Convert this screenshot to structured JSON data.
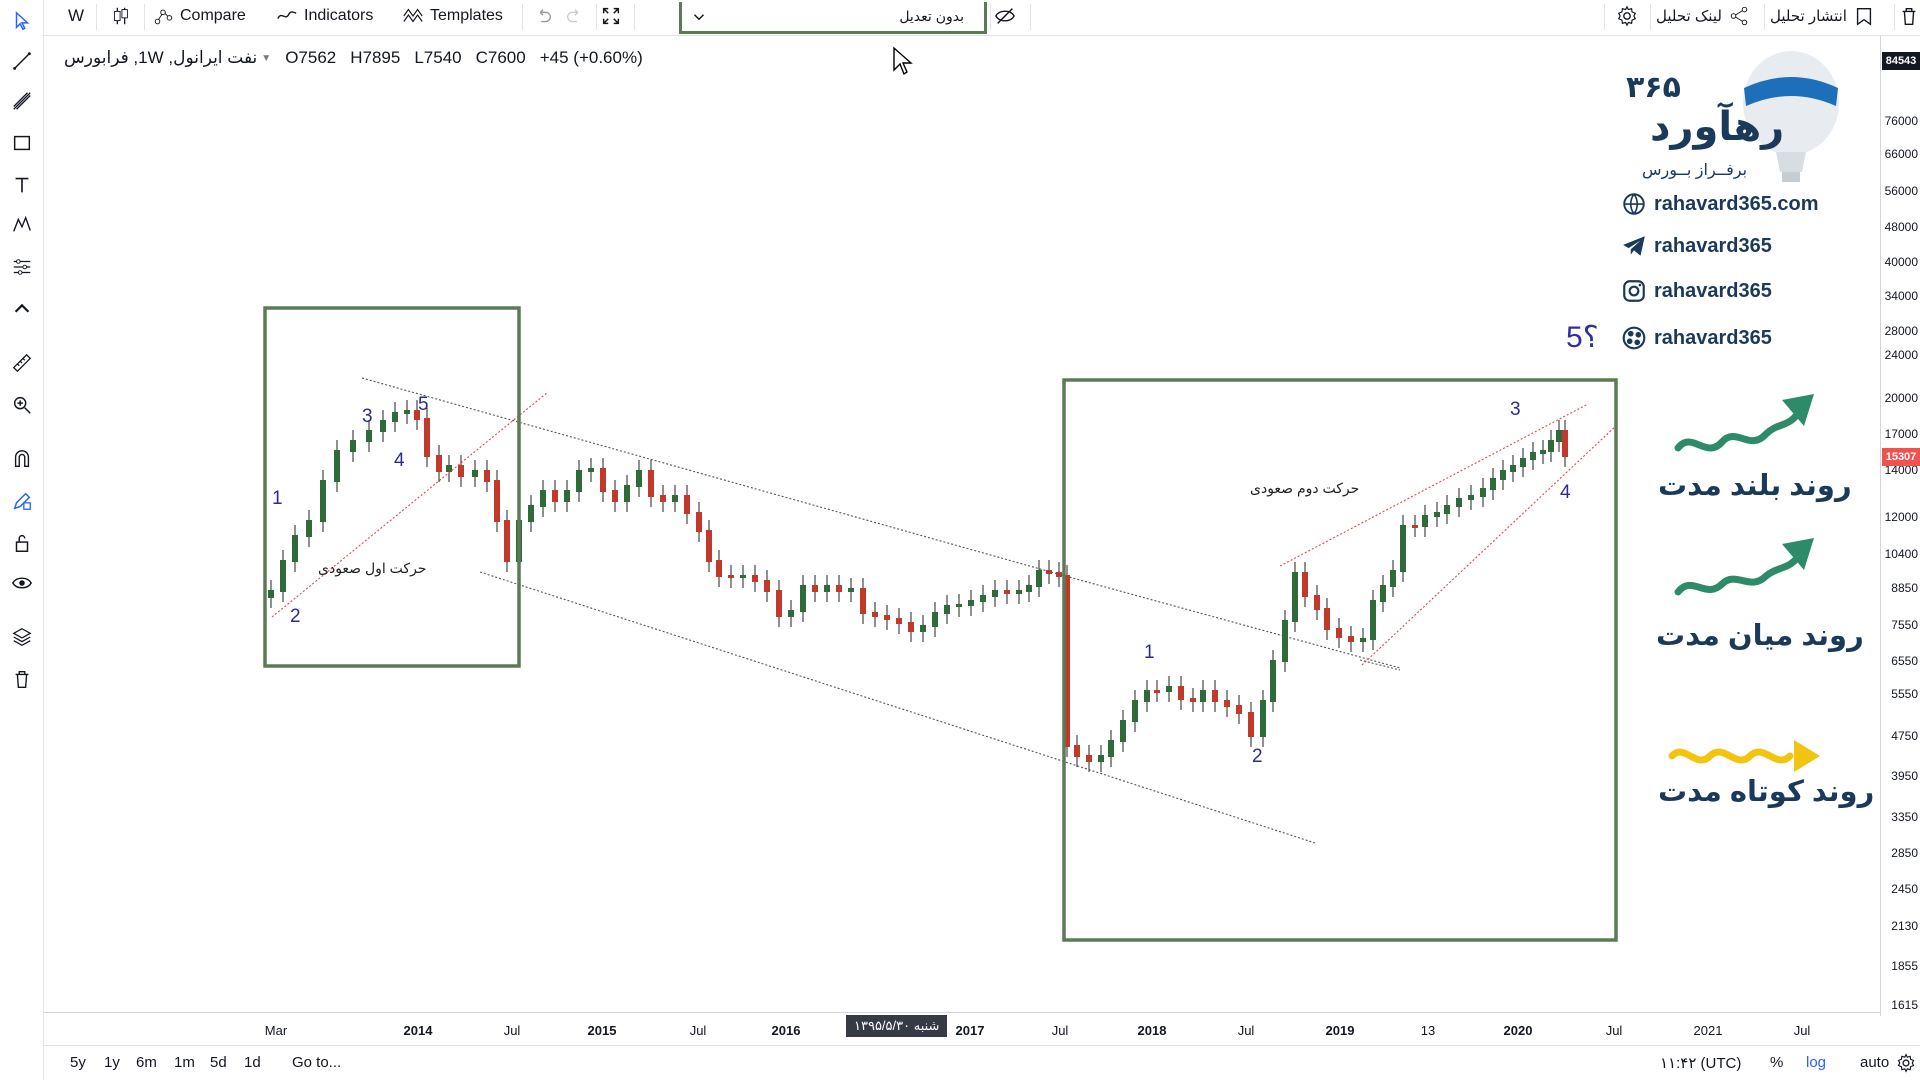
{
  "toolbar": {
    "interval": "W",
    "compare": "Compare",
    "indicators": "Indicators",
    "templates": "Templates",
    "adjust_value": "بدون تعدیل",
    "share_link": "لینک تحلیل",
    "publish": "انتشار تحلیل"
  },
  "legend": {
    "symbol": "نفت ایرانول, 1W, فرابورس",
    "open": "O7562",
    "high": "H7895",
    "low": "L7540",
    "close": "C7600",
    "change": "+45 (+0.60%)"
  },
  "price_axis": {
    "ticks": [
      "76000",
      "66000",
      "56000",
      "48000",
      "40000",
      "34000",
      "28000",
      "24000",
      "20000",
      "17000",
      "14000",
      "12000",
      "10400",
      "8850",
      "7550",
      "6550",
      "5550",
      "4750",
      "3950",
      "3350",
      "2850",
      "2450",
      "2130",
      "1855",
      "1615"
    ],
    "top_badge": "84543",
    "current_badge": "15307"
  },
  "time_axis": {
    "ticks": [
      {
        "label": "Mar",
        "bold": false
      },
      {
        "label": "2014",
        "bold": true
      },
      {
        "label": "Jul",
        "bold": false
      },
      {
        "label": "2015",
        "bold": true
      },
      {
        "label": "Jul",
        "bold": false
      },
      {
        "label": "2016",
        "bold": true
      },
      {
        "label": "2017",
        "bold": true
      },
      {
        "label": "Jul",
        "bold": false
      },
      {
        "label": "2018",
        "bold": true
      },
      {
        "label": "Jul",
        "bold": false
      },
      {
        "label": "2019",
        "bold": true
      },
      {
        "label": "13",
        "bold": false
      },
      {
        "label": "2020",
        "bold": true
      },
      {
        "label": "Jul",
        "bold": false
      },
      {
        "label": "2021",
        "bold": false
      },
      {
        "label": "Jul",
        "bold": false
      }
    ],
    "crosshair_date": "شنبه ۱۳۹۵/۵/۳۰"
  },
  "bottom_bar": {
    "ranges": [
      "5y",
      "1y",
      "6m",
      "1m",
      "5d",
      "1d"
    ],
    "goto": "Go to...",
    "time": "۱۱:۴۲ (UTC)",
    "percent": "%",
    "log": "log",
    "auto": "auto"
  },
  "annotations": {
    "first_rise": "حرکت اول صعودی",
    "second_rise": "حرکت دوم صعودی",
    "wave_labels_left": [
      "1",
      "2",
      "3",
      "4",
      "5"
    ],
    "wave_labels_right": [
      "1",
      "2",
      "3",
      "4"
    ],
    "question": "5؟"
  },
  "brand": {
    "logo_main": "رهآورد",
    "logo_num": "۳۶۵",
    "logo_sub": "برفــراز بــورس",
    "website": "rahavard365.com",
    "telegram": "rahavard365",
    "instagram": "rahavard365",
    "aparat": "rahavard365",
    "long_trend": "روند بلند مدت",
    "mid_trend": "روند میان مدت",
    "short_trend": "روند کوتاه مدت",
    "colors": {
      "long": "#2e8b6a",
      "mid": "#2e8b6a",
      "short": "#f1c40f"
    }
  }
}
